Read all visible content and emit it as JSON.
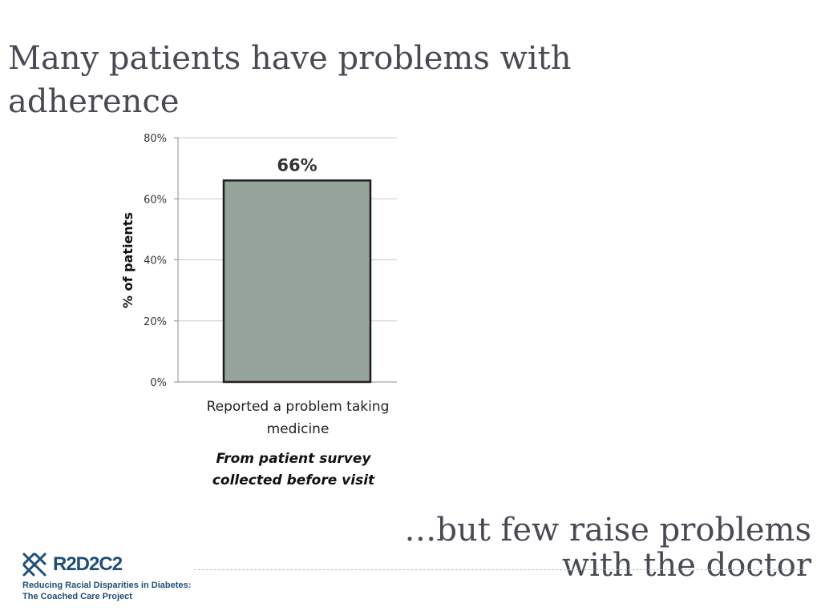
{
  "slide": {
    "title": "Many patients have problems with adherence",
    "subtitle_line1": "…but few raise problems",
    "subtitle_line2": "with the doctor"
  },
  "chart_data": {
    "type": "bar",
    "categories": [
      "Reported a problem taking medicine"
    ],
    "category_label_lines": [
      "Reported a problem taking",
      "medicine"
    ],
    "values": [
      66
    ],
    "data_labels": [
      "66%"
    ],
    "ylabel": "% of patients",
    "ylim": [
      0,
      80
    ],
    "yticks": [
      0,
      20,
      40,
      60,
      80
    ],
    "ytick_labels": [
      "0%",
      "20%",
      "40%",
      "60%",
      "80%"
    ],
    "grid": true,
    "legend": "none",
    "bar_color": "#95a39b",
    "bar_edge_color": "#1e1e1e",
    "caption_line1": "From patient survey",
    "caption_line2": "collected before visit"
  },
  "logo": {
    "name": "R2D2C2",
    "tagline_line1": "Reducing Racial Disparities in Diabetes:",
    "tagline_line2": "The Coached Care Project",
    "color": "#1f4e79",
    "icon": "dna-helix-icon"
  }
}
